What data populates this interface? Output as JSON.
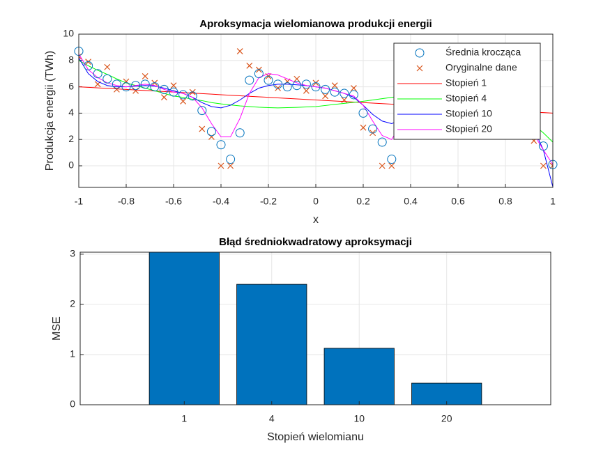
{
  "chart_data": [
    {
      "type": "line",
      "title": "Aproksymacja wielomianowa produkcji energii",
      "x_label": "x",
      "y_label": "Produkcja energii (TWh)",
      "x": [
        -1,
        -0.96,
        -0.92,
        -0.88,
        -0.84,
        -0.8,
        -0.76,
        -0.72,
        -0.68,
        -0.64,
        -0.6,
        -0.56,
        -0.52,
        -0.48,
        -0.44,
        -0.4,
        -0.36,
        -0.32,
        -0.28,
        -0.24,
        -0.2,
        -0.16,
        -0.12,
        -0.08,
        -0.04,
        0,
        0.04,
        0.08,
        0.12,
        0.16,
        0.2,
        0.24,
        0.28,
        0.32,
        0.36,
        0.4,
        0.44,
        0.48,
        0.52,
        0.56,
        0.6,
        0.64,
        0.68,
        0.72,
        0.76,
        0.8,
        0.84,
        0.88,
        0.92,
        0.96,
        1
      ],
      "series": [
        {
          "name": "Średnia krocząca",
          "color": "#0072bd",
          "marker": "circle",
          "values": [
            8.7,
            7.6,
            7.0,
            6.6,
            6.2,
            6.0,
            6.1,
            6.2,
            6.0,
            5.8,
            5.6,
            5.4,
            5.3,
            4.2,
            2.6,
            1.6,
            0.5,
            2.5,
            6.5,
            7.0,
            6.5,
            6.2,
            6.0,
            6.1,
            6.2,
            6.0,
            5.8,
            5.6,
            5.5,
            5.4,
            4.0,
            2.8,
            1.8,
            0.5,
            3.0,
            6.5,
            7.0,
            6.5,
            6.2,
            6.0,
            6.1,
            6.2,
            6.0,
            5.8,
            5.6,
            5.5,
            5.4,
            4.0,
            2.7,
            1.5,
            0.1
          ]
        },
        {
          "name": "Oryginalne dane",
          "color": "#d95319",
          "marker": "cross",
          "values": [
            8.3,
            7.9,
            6.2,
            7.5,
            5.8,
            6.4,
            5.7,
            6.8,
            6.3,
            5.2,
            6.1,
            4.9,
            5.6,
            2.8,
            2.2,
            0,
            0,
            8.7,
            7.6,
            7.3,
            6.8,
            5.9,
            6.4,
            6.6,
            5.7,
            6.3,
            5.3,
            6.1,
            5.0,
            5.9,
            2.9,
            2.5,
            0,
            0,
            8.4,
            7.2,
            7.5,
            6.1,
            6.6,
            5.5,
            6.4,
            6.0,
            5.3,
            6.2,
            5.1,
            5.8,
            5.4,
            2.7,
            1.9,
            0,
            0
          ]
        },
        {
          "name": "Stopień 1",
          "color": "#ff0000",
          "values": [
            6,
            5.96,
            5.92,
            5.88,
            5.84,
            5.8,
            5.76,
            5.72,
            5.68,
            5.64,
            5.6,
            5.56,
            5.52,
            5.48,
            5.44,
            5.4,
            5.36,
            5.32,
            5.28,
            5.24,
            5.2,
            5.16,
            5.12,
            5.08,
            5.04,
            5,
            4.96,
            4.92,
            4.88,
            4.84,
            4.8,
            4.76,
            4.72,
            4.68,
            4.64,
            4.6,
            4.56,
            4.52,
            4.48,
            4.44,
            4.4,
            4.36,
            4.32,
            4.28,
            4.24,
            4.2,
            4.16,
            4.12,
            4.08,
            4.04,
            4
          ]
        },
        {
          "name": "Stopień 4",
          "color": "#00ff00",
          "values": [
            8.0,
            7.6,
            7.25,
            6.95,
            6.6,
            6.3,
            6.1,
            5.9,
            5.7,
            5.5,
            5.3,
            5.2,
            5.05,
            4.95,
            4.8,
            4.7,
            4.62,
            4.55,
            4.5,
            4.45,
            4.42,
            4.4,
            4.42,
            4.44,
            4.47,
            4.5,
            4.58,
            4.66,
            4.74,
            4.82,
            4.9,
            5.0,
            5.1,
            5.2,
            5.3,
            5.4,
            5.48,
            5.54,
            5.58,
            5.6,
            5.6,
            5.5,
            5.35,
            5.15,
            4.9,
            4.6,
            4.2,
            3.7,
            3.1,
            2.5,
            1.8
          ]
        },
        {
          "name": "Stopień 10",
          "color": "#0000ff",
          "values": [
            8.2,
            7.0,
            6.4,
            6.1,
            6.0,
            6.0,
            6.05,
            6.1,
            6.05,
            5.9,
            5.7,
            5.5,
            5.2,
            4.8,
            4.5,
            4.4,
            4.6,
            5.0,
            5.5,
            5.9,
            6.1,
            6.2,
            6.2,
            6.15,
            6.1,
            6.0,
            5.9,
            5.7,
            5.5,
            5.2,
            4.6,
            3.9,
            3.4,
            3.2,
            3.5,
            4.2,
            4.9,
            5.4,
            5.6,
            5.6,
            5.5,
            5.4,
            5.3,
            5.2,
            5.0,
            4.8,
            4.4,
            3.8,
            2.8,
            1.2,
            -1.6
          ]
        },
        {
          "name": "Stopień 20",
          "color": "#ff00ff",
          "values": [
            8.5,
            7.3,
            6.7,
            6.3,
            6.1,
            6.0,
            6.1,
            6.2,
            6.1,
            5.8,
            5.6,
            5.5,
            5.2,
            4.4,
            3.2,
            2.2,
            2.2,
            3.6,
            5.5,
            6.7,
            7.0,
            6.9,
            6.6,
            6.3,
            6.1,
            6.0,
            5.9,
            5.7,
            5.5,
            5.3,
            4.6,
            3.4,
            2.3,
            2.0,
            3.2,
            5.2,
            6.6,
            6.9,
            6.6,
            6.2,
            6.0,
            6.1,
            6.0,
            5.8,
            5.6,
            5.4,
            5.0,
            3.8,
            2.4,
            1.2,
            0.1
          ]
        }
      ],
      "xlim": [
        -1,
        1
      ],
      "xticks": [
        -1,
        -0.8,
        -0.6,
        -0.4,
        -0.2,
        0,
        0.2,
        0.4,
        0.6,
        0.8,
        1
      ],
      "ylim": [
        -1.64,
        10
      ],
      "yticks": [
        0,
        2,
        4,
        6,
        8,
        10
      ],
      "grid": true,
      "legend": "northeast"
    },
    {
      "type": "bar",
      "title": "Błąd średniokwadratowy aproksymacji",
      "x_label": "Stopień wielomianu",
      "y_label": "MSE",
      "categories": [
        "1",
        "4",
        "10",
        "20"
      ],
      "values": [
        3.1,
        2.4,
        1.125,
        0.43
      ],
      "color": "#0072bd",
      "ylim": [
        0,
        3.04
      ],
      "yticks": [
        0,
        1,
        2,
        3
      ],
      "grid": true
    }
  ]
}
